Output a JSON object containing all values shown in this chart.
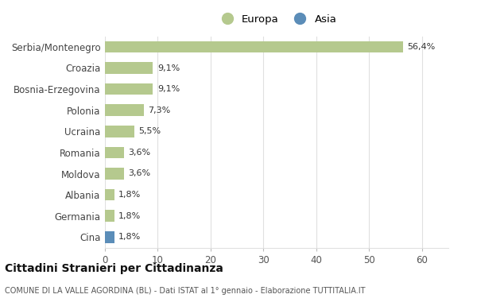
{
  "categories": [
    "Serbia/Montenegro",
    "Croazia",
    "Bosnia-Erzegovina",
    "Polonia",
    "Ucraina",
    "Romania",
    "Moldova",
    "Albania",
    "Germania",
    "Cina"
  ],
  "values": [
    56.4,
    9.1,
    9.1,
    7.3,
    5.5,
    3.6,
    3.6,
    1.8,
    1.8,
    1.8
  ],
  "labels": [
    "56,4%",
    "9,1%",
    "9,1%",
    "7,3%",
    "5,5%",
    "3,6%",
    "3,6%",
    "1,8%",
    "1,8%",
    "1,8%"
  ],
  "colors": [
    "#b5c98e",
    "#b5c98e",
    "#b5c98e",
    "#b5c98e",
    "#b5c98e",
    "#b5c98e",
    "#b5c98e",
    "#b5c98e",
    "#b5c98e",
    "#5b8db8"
  ],
  "europa_color": "#b5c98e",
  "asia_color": "#5b8db8",
  "xlim": [
    0,
    65
  ],
  "xticks": [
    0,
    10,
    20,
    30,
    40,
    50,
    60
  ],
  "title_main": "Cittadini Stranieri per Cittadinanza",
  "title_sub": "COMUNE DI LA VALLE AGORDINA (BL) - Dati ISTAT al 1° gennaio - Elaborazione TUTTITALIA.IT",
  "legend_europa": "Europa",
  "legend_asia": "Asia",
  "background_color": "#ffffff",
  "grid_color": "#e0e0e0"
}
